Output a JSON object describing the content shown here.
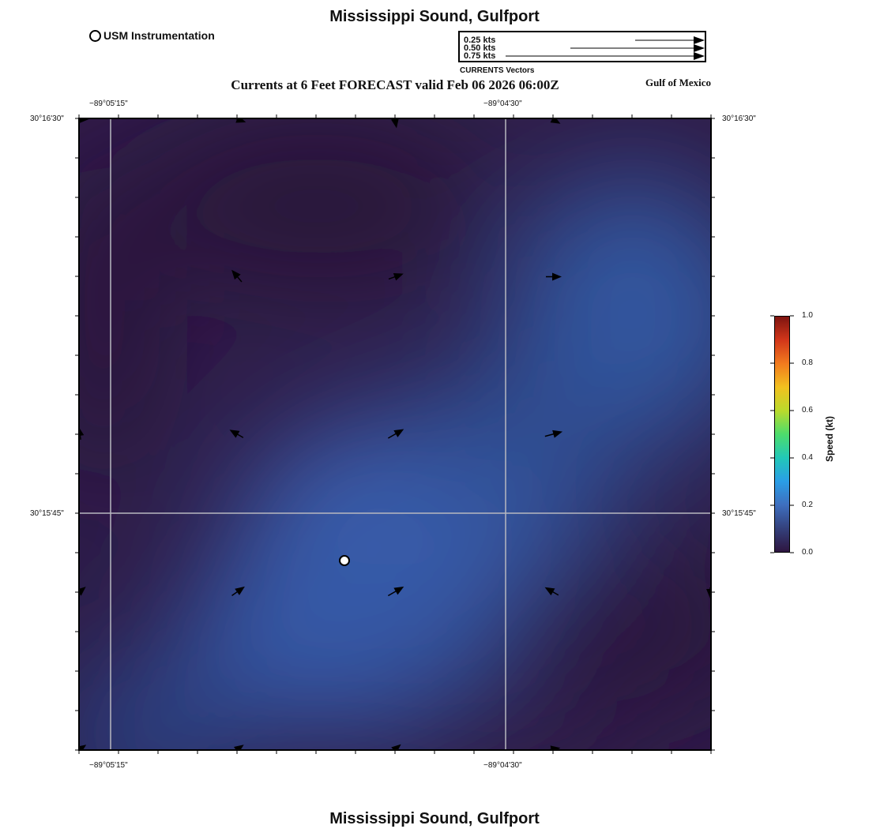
{
  "header": {
    "title": "Mississippi Sound, Gulfport",
    "subtitle": "Currents at 6 Feet FORECAST valid Feb 06 2026 06:00Z",
    "region": "Gulf of Mexico",
    "usm_label": "USM Instrumentation"
  },
  "legend": {
    "items": [
      "0.25 kts",
      "0.50 kts",
      "0.75 kts"
    ],
    "caption": "CURRENTS Vectors"
  },
  "axes": {
    "lon_labels": [
      "−89°05'15\"",
      "−89°04'30\""
    ],
    "lat_labels": [
      "30°16'30\"",
      "30°15'45\""
    ]
  },
  "colorbar": {
    "title": "Speed (kt)",
    "ticks": [
      "1.0",
      "0.8",
      "0.6",
      "0.4",
      "0.2",
      "0.0"
    ],
    "range": [
      0.0,
      1.0
    ]
  },
  "footer": {
    "title": "Mississippi Sound, Gulfport"
  },
  "colors": {
    "dark": "#2e1a42",
    "light": "#365aa2"
  },
  "vectors": [
    {
      "lon": 0.0,
      "lat": 1.0,
      "dir": 0,
      "speed": 0.15
    },
    {
      "lon": 0.25,
      "lat": 1.0,
      "dir": 20,
      "speed": 0.15
    },
    {
      "lon": 0.5,
      "lat": 1.0,
      "dir": 80,
      "speed": 0.15
    },
    {
      "lon": 0.75,
      "lat": 1.0,
      "dir": 30,
      "speed": 0.15
    },
    {
      "lon": 0.25,
      "lat": 0.75,
      "dir": -130,
      "speed": 0.15
    },
    {
      "lon": 0.5,
      "lat": 0.75,
      "dir": -20,
      "speed": 0.15
    },
    {
      "lon": 0.75,
      "lat": 0.75,
      "dir": 0,
      "speed": 0.15
    },
    {
      "lon": 0.25,
      "lat": 0.5,
      "dir": -150,
      "speed": 0.15
    },
    {
      "lon": 0.5,
      "lat": 0.5,
      "dir": -30,
      "speed": 0.2
    },
    {
      "lon": 0.75,
      "lat": 0.5,
      "dir": -15,
      "speed": 0.2
    },
    {
      "lon": 0.0,
      "lat": 0.5,
      "dir": -100,
      "speed": 0.1
    },
    {
      "lon": 0.0,
      "lat": 0.25,
      "dir": -40,
      "speed": 0.1
    },
    {
      "lon": 0.25,
      "lat": 0.25,
      "dir": -35,
      "speed": 0.15
    },
    {
      "lon": 0.5,
      "lat": 0.25,
      "dir": -30,
      "speed": 0.2
    },
    {
      "lon": 0.75,
      "lat": 0.25,
      "dir": -150,
      "speed": 0.15
    },
    {
      "lon": 1.0,
      "lat": 0.25,
      "dir": 90,
      "speed": 0.05
    },
    {
      "lon": 0.0,
      "lat": 0.0,
      "dir": -35,
      "speed": 0.1
    },
    {
      "lon": 0.25,
      "lat": 0.0,
      "dir": -35,
      "speed": 0.1
    },
    {
      "lon": 0.5,
      "lat": 0.0,
      "dir": -40,
      "speed": 0.1
    },
    {
      "lon": 0.75,
      "lat": 0.0,
      "dir": -10,
      "speed": 0.1
    }
  ]
}
